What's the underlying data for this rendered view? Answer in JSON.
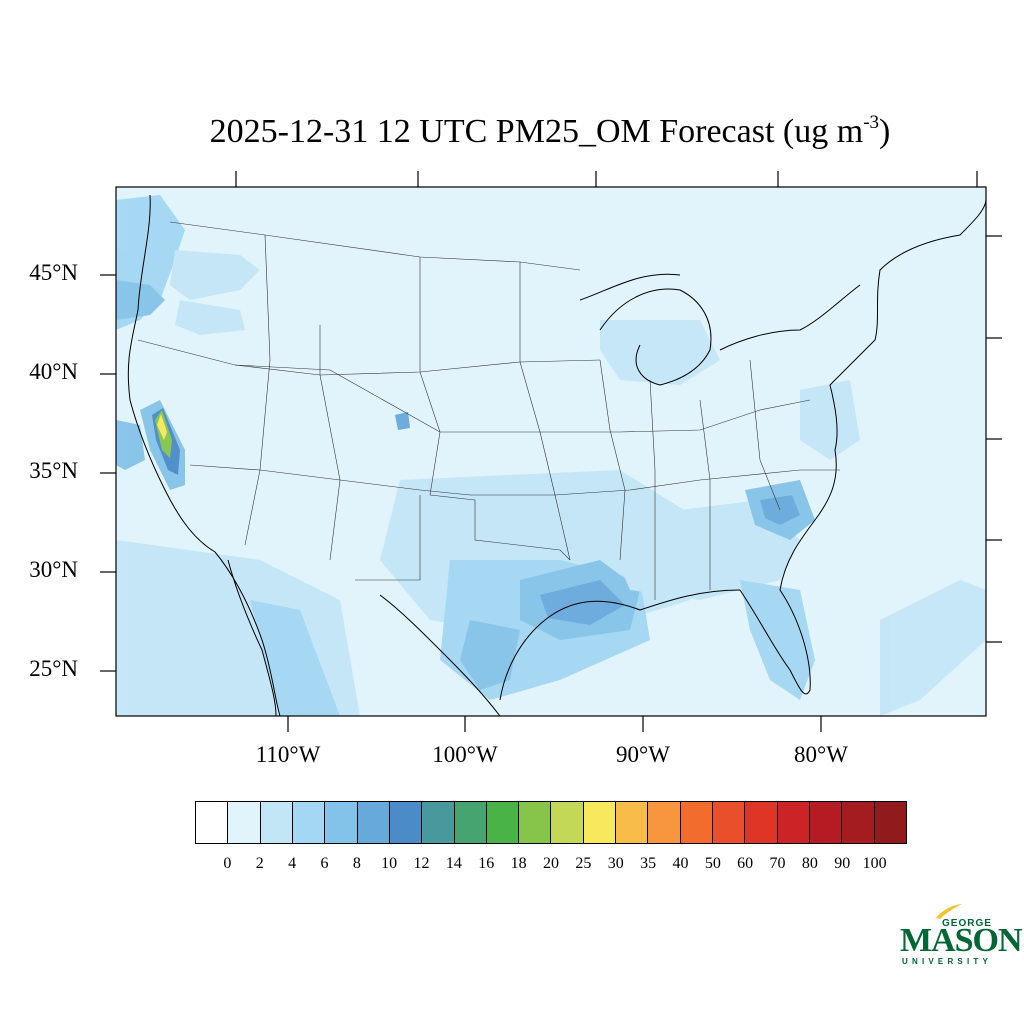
{
  "title": {
    "date": "2025-12-31",
    "hour": "12 UTC",
    "product": "PM25_OM Forecast",
    "units_open": "(ug m",
    "units_exp": "-3",
    "units_close": ")"
  },
  "map": {
    "lat_labels": [
      "45°N",
      "40°N",
      "35°N",
      "30°N",
      "25°N"
    ],
    "lon_labels": [
      "110°W",
      "100°W",
      "90°W",
      "80°W"
    ]
  },
  "colorbar": {
    "labels": [
      "0",
      "2",
      "4",
      "6",
      "8",
      "10",
      "12",
      "14",
      "16",
      "18",
      "20",
      "25",
      "30",
      "35",
      "40",
      "50",
      "60",
      "70",
      "80",
      "90",
      "100"
    ],
    "colors": [
      "#ffffff",
      "#e1f3fb",
      "#c3e6f7",
      "#a3d7f3",
      "#84c3e9",
      "#68a9dc",
      "#4a8bc8",
      "#47999d",
      "#45a46f",
      "#4ab348",
      "#86c54a",
      "#c4d858",
      "#f8e85e",
      "#f7bd48",
      "#f7963e",
      "#f26c2d",
      "#ea4f2b",
      "#dd3627",
      "#cc2327",
      "#b41b23",
      "#a41c20",
      "#901a1c"
    ]
  },
  "logo": {
    "line1": "GEORGE",
    "line2": "MASON",
    "line3": "UNIVERSITY",
    "color": "#006633"
  }
}
